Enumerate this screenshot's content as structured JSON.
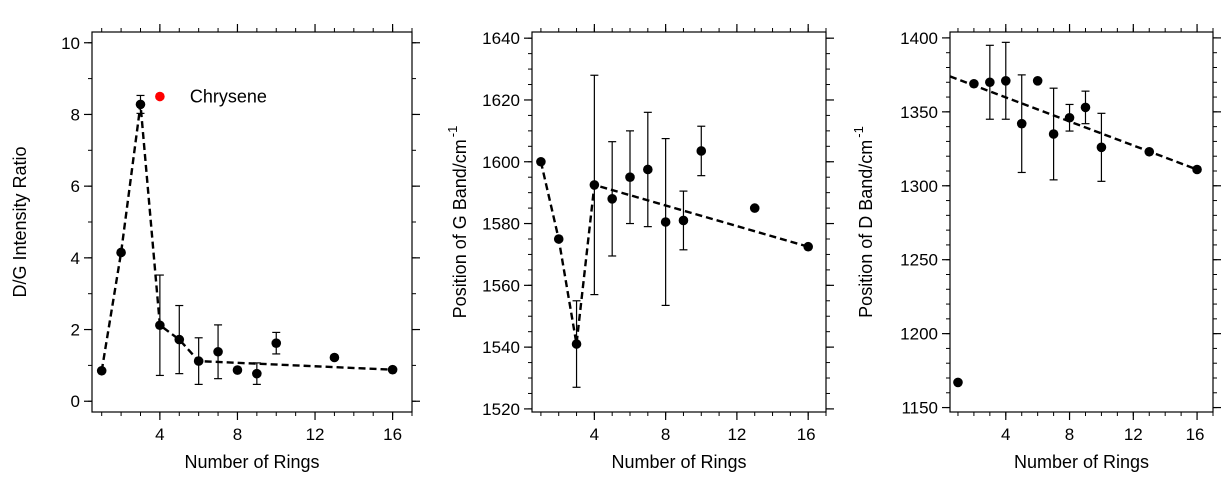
{
  "chart_data": [
    {
      "type": "scatter",
      "xlabel": "Number of Rings",
      "ylabel": "D/G Intensity Ratio",
      "xlim": [
        0.5,
        17
      ],
      "ylim": [
        -0.3,
        10.3
      ],
      "xticks": [
        4,
        8,
        12,
        16
      ],
      "yticks": [
        0,
        2,
        4,
        6,
        8,
        10
      ],
      "x_minor_step": 1,
      "y_minor_step": 1,
      "grid": false,
      "legend": {
        "position": "top-center",
        "label": "Chrysene",
        "color": "#ff0000",
        "x": 4,
        "y": 8.5
      },
      "points": [
        {
          "x": 1,
          "y": 0.85
        },
        {
          "x": 2,
          "y": 4.15
        },
        {
          "x": 3,
          "y": 8.28,
          "err": 0.25
        },
        {
          "x": 4,
          "y": 2.12,
          "err": 1.4
        },
        {
          "x": 5,
          "y": 1.72,
          "err": 0.95
        },
        {
          "x": 6,
          "y": 1.12,
          "err": 0.65
        },
        {
          "x": 7,
          "y": 1.38,
          "err": 0.75
        },
        {
          "x": 8,
          "y": 0.87
        },
        {
          "x": 9,
          "y": 0.77,
          "err": 0.3
        },
        {
          "x": 10,
          "y": 1.62,
          "err": 0.3
        },
        {
          "x": 13,
          "y": 1.22
        },
        {
          "x": 16,
          "y": 0.88
        }
      ],
      "fit_line": [
        [
          1,
          0.85
        ],
        [
          2,
          4.15
        ],
        [
          3,
          8.28
        ],
        [
          4,
          2.12
        ],
        [
          5,
          1.72
        ],
        [
          6,
          1.12
        ],
        [
          16,
          0.88
        ]
      ]
    },
    {
      "type": "scatter",
      "xlabel": "Number of Rings",
      "ylabel": "Position of G Band/cm",
      "ylabel_superscript": "-1",
      "xlim": [
        0.5,
        17
      ],
      "ylim": [
        1519,
        1642
      ],
      "xticks": [
        4,
        8,
        12,
        16
      ],
      "yticks": [
        1520,
        1540,
        1560,
        1580,
        1600,
        1620,
        1640
      ],
      "x_minor_step": 1,
      "y_minor_step": 5,
      "grid": false,
      "points": [
        {
          "x": 1,
          "y": 1600
        },
        {
          "x": 2,
          "y": 1575
        },
        {
          "x": 3,
          "y": 1541,
          "err": 14
        },
        {
          "x": 4,
          "y": 1592.5,
          "err": 35.5
        },
        {
          "x": 5,
          "y": 1588,
          "err": 18.5
        },
        {
          "x": 6,
          "y": 1595,
          "err": 15
        },
        {
          "x": 7,
          "y": 1597.5,
          "err": 18.5
        },
        {
          "x": 8,
          "y": 1580.5,
          "err": 27
        },
        {
          "x": 9,
          "y": 1581,
          "err": 9.5
        },
        {
          "x": 10,
          "y": 1603.5,
          "err": 8
        },
        {
          "x": 13,
          "y": 1585
        },
        {
          "x": 16,
          "y": 1572.5
        }
      ],
      "fit_line": [
        [
          1,
          1600
        ],
        [
          2,
          1575
        ],
        [
          3,
          1541
        ],
        [
          4,
          1592.5
        ],
        [
          16,
          1572.5
        ]
      ]
    },
    {
      "type": "scatter",
      "xlabel": "Number of Rings",
      "ylabel": "Position of D Band/cm",
      "ylabel_superscript": "-1",
      "xlim": [
        0.5,
        17
      ],
      "ylim": [
        1147,
        1404
      ],
      "xticks": [
        4,
        8,
        12,
        16
      ],
      "yticks": [
        1150,
        1200,
        1250,
        1300,
        1350,
        1400
      ],
      "x_minor_step": 1,
      "y_minor_step": 10,
      "grid": false,
      "points": [
        {
          "x": 1,
          "y": 1167
        },
        {
          "x": 2,
          "y": 1369
        },
        {
          "x": 3,
          "y": 1370,
          "err": 25
        },
        {
          "x": 4,
          "y": 1371,
          "err": 26
        },
        {
          "x": 5,
          "y": 1342,
          "err": 33
        },
        {
          "x": 6,
          "y": 1371
        },
        {
          "x": 7,
          "y": 1335,
          "err": 31
        },
        {
          "x": 8,
          "y": 1346,
          "err": 9
        },
        {
          "x": 9,
          "y": 1353,
          "err": 11
        },
        {
          "x": 10,
          "y": 1326,
          "err": 23
        },
        {
          "x": 13,
          "y": 1323
        },
        {
          "x": 16,
          "y": 1311
        }
      ],
      "fit_line": [
        [
          0.5,
          1374
        ],
        [
          16,
          1311
        ]
      ]
    }
  ]
}
